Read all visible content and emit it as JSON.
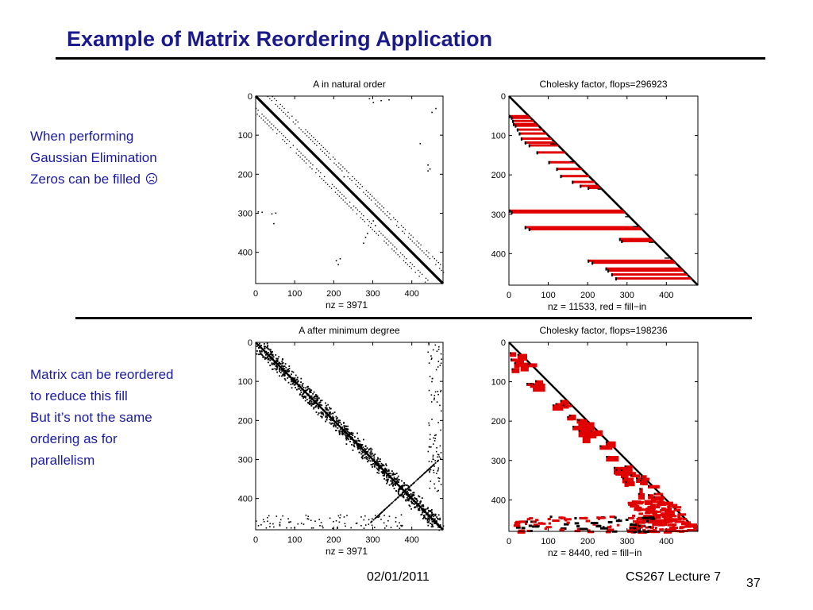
{
  "slide": {
    "title": "Example of Matrix Reordering Application",
    "bullets_top": [
      "When performing",
      "Gaussian Elimination",
      "Zeros can be filled"
    ],
    "bullets_top_icon": "frown-face-icon",
    "bullets_bottom": [
      "Matrix can be reordered",
      "to reduce this fill",
      "But it’s not the same",
      "ordering as for",
      "parallelism"
    ],
    "footer_date": "02/01/2011",
    "footer_course": "CS267 Lecture 7",
    "page_number": "37"
  },
  "colors": {
    "title": "#1a1a8c",
    "text": "#1a1aa0",
    "fill_in": "#e00000",
    "nonzero": "#000000"
  },
  "chart_data": [
    {
      "type": "scatter",
      "title": "A in natural order",
      "xlabel": "nz = 3971",
      "x_ticks": [
        0,
        100,
        200,
        300,
        400
      ],
      "y_ticks": [
        0,
        100,
        200,
        300,
        400
      ],
      "xlim": [
        0,
        480
      ],
      "ylim": [
        0,
        480
      ],
      "y_reversed": true,
      "pattern": "banded",
      "nz": 3971
    },
    {
      "type": "scatter",
      "title": "Cholesky factor, flops=296923",
      "xlabel": "nz = 11533,    red = fill−in",
      "x_ticks": [
        0,
        100,
        200,
        300,
        400
      ],
      "y_ticks": [
        0,
        100,
        200,
        300,
        400
      ],
      "xlim": [
        0,
        480
      ],
      "ylim": [
        0,
        480
      ],
      "y_reversed": true,
      "pattern": "lower-triangular-with-row-fill",
      "nz": 11533,
      "flops": 296923
    },
    {
      "type": "scatter",
      "title": "A after minimum degree",
      "xlabel": "nz = 3971",
      "x_ticks": [
        0,
        100,
        200,
        300,
        400
      ],
      "y_ticks": [
        0,
        100,
        200,
        300,
        400
      ],
      "xlim": [
        0,
        480
      ],
      "ylim": [
        0,
        480
      ],
      "y_reversed": true,
      "pattern": "scattered-diagonal",
      "nz": 3971
    },
    {
      "type": "scatter",
      "title": "Cholesky factor, flops=198236",
      "xlabel": "nz = 8440,    red = fill−in",
      "x_ticks": [
        0,
        100,
        200,
        300,
        400
      ],
      "y_ticks": [
        0,
        100,
        200,
        300,
        400
      ],
      "xlim": [
        0,
        480
      ],
      "ylim": [
        0,
        480
      ],
      "y_reversed": true,
      "pattern": "lower-triangular-with-block-fill",
      "nz": 8440,
      "flops": 198236
    }
  ]
}
